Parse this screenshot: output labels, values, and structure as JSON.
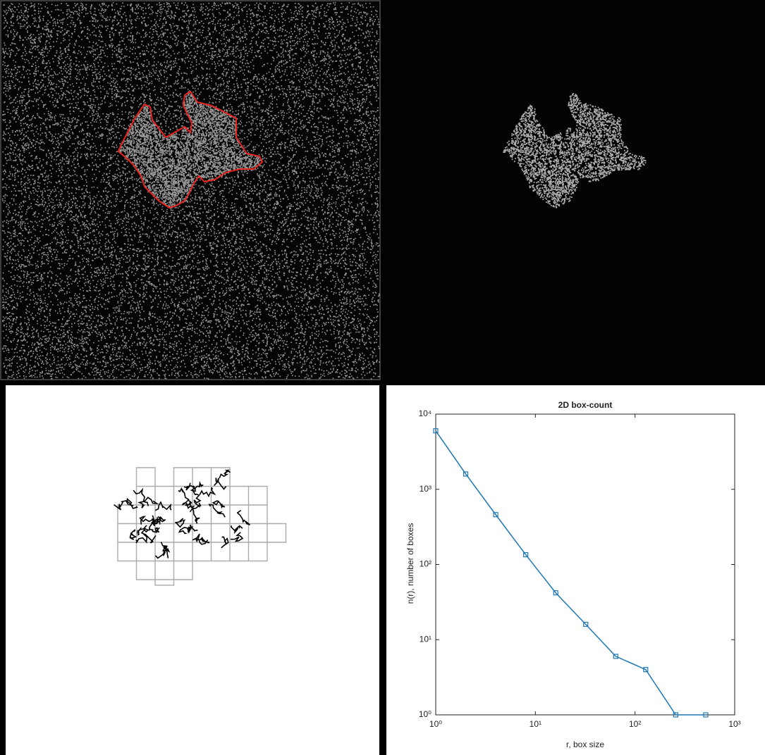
{
  "chart_data": {
    "type": "line",
    "title": "2D box-count",
    "x_label": "r, box size",
    "y_label": "n(r), number of boxes",
    "x": [
      1,
      2,
      4,
      8,
      16,
      32,
      64,
      128,
      256,
      512
    ],
    "series": [
      {
        "color": "#1f77b4",
        "values": [
          6000,
          1600,
          460,
          135,
          42,
          16,
          6,
          4,
          1,
          1
        ]
      }
    ],
    "xlim": [
      1,
      1000
    ],
    "ylim": [
      1,
      10000
    ],
    "log_x": true,
    "log_y": true,
    "xticks": [
      {
        "value": 1,
        "label": "10⁰"
      },
      {
        "value": 10,
        "label": "10¹"
      },
      {
        "value": 100,
        "label": "10²"
      },
      {
        "value": 1000,
        "label": "10³"
      }
    ],
    "yticks": [
      {
        "value": 1,
        "label": "10⁰"
      },
      {
        "value": 10,
        "label": "10¹"
      },
      {
        "value": 100,
        "label": "10²"
      },
      {
        "value": 1000,
        "label": "10³"
      },
      {
        "value": 10000,
        "label": "10⁴"
      }
    ]
  }
}
